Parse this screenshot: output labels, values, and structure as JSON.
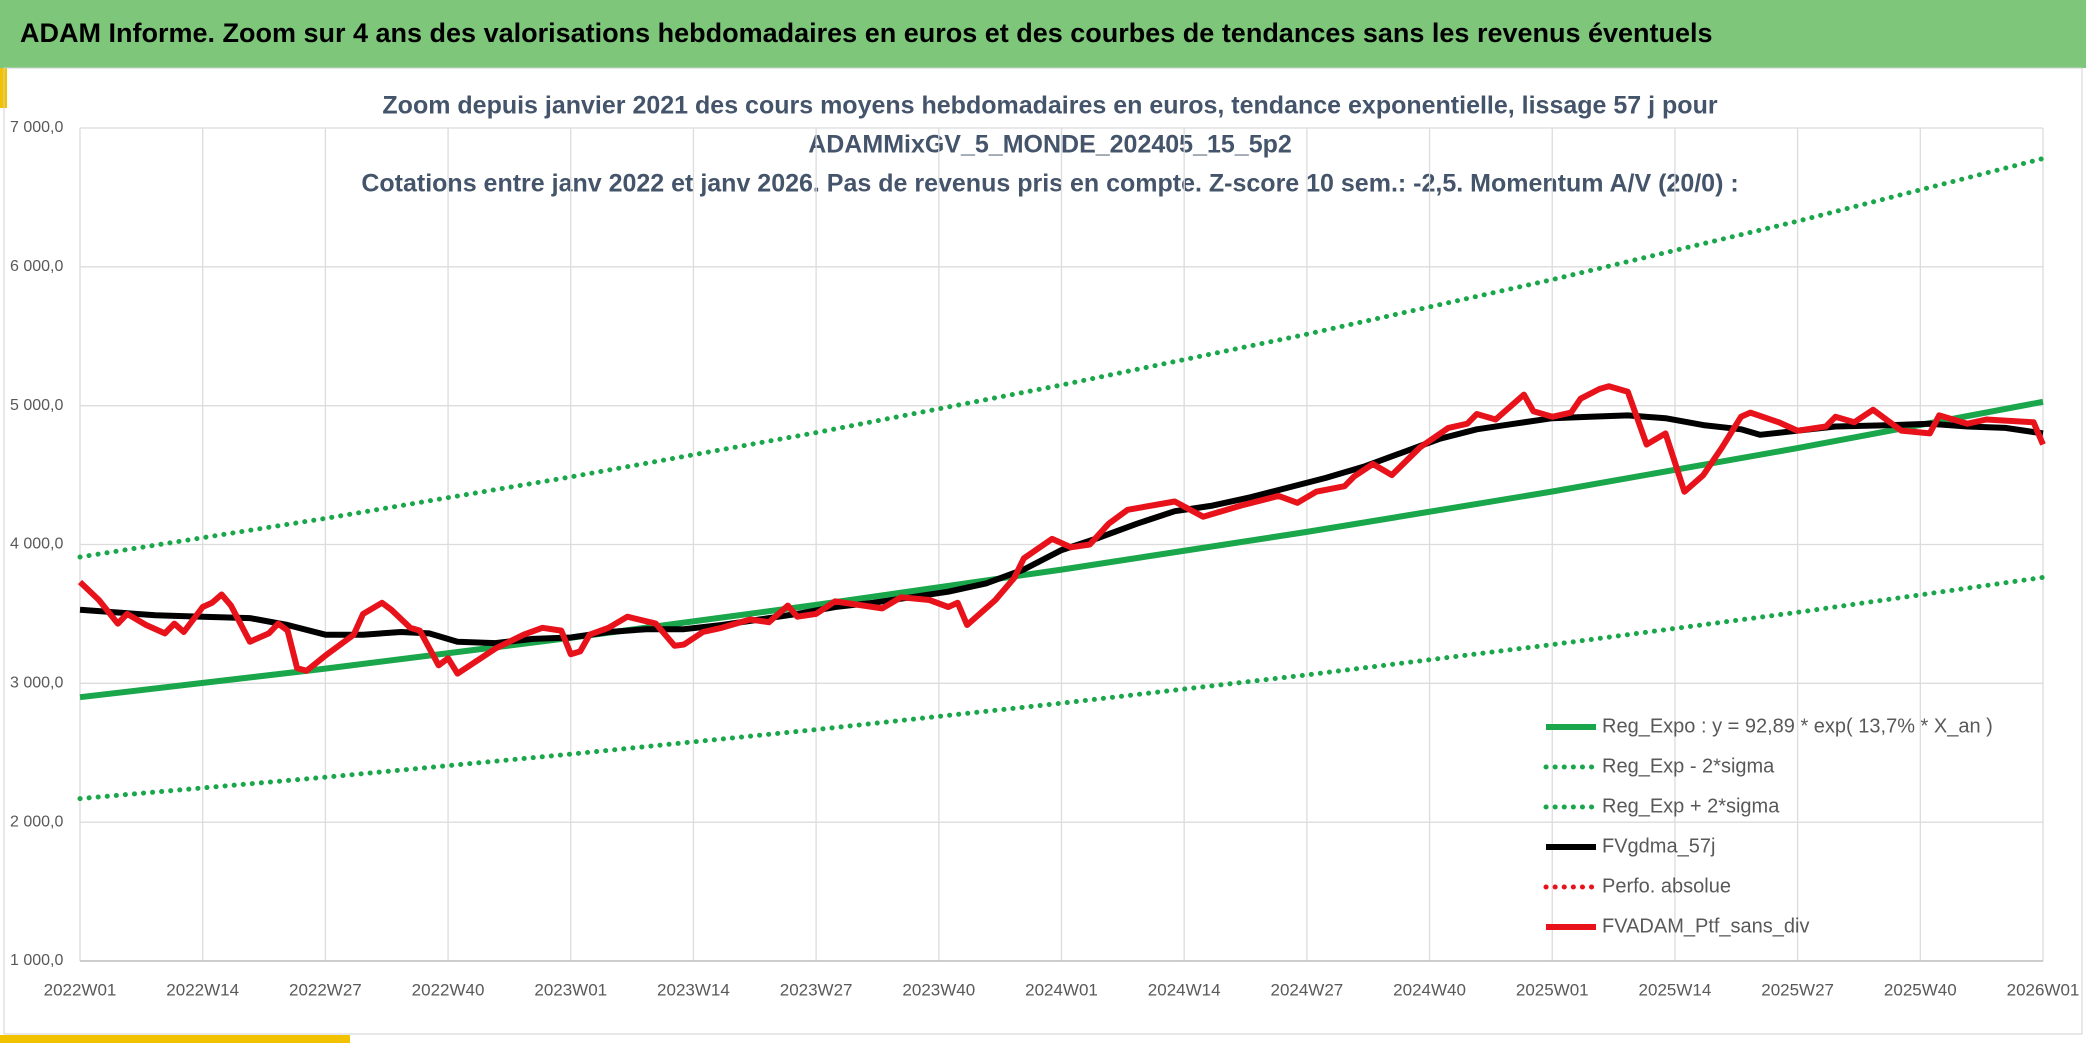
{
  "header": "ADAM Informe. Zoom sur 4 ans des valorisations hebdomadaires en euros et des courbes de tendances sans les revenus éventuels",
  "chart_data": {
    "type": "line",
    "title": [
      "Zoom depuis janvier 2021 des cours moyens hebdomadaires en euros, tendance exponentielle, lissage 57 j pour",
      "ADAMMixGV_5_MONDE_202405_15_5p2",
      "Cotations entre janv 2022 et janv 2026. Pas de revenus pris en compte. Z-score 10 sem.: -2,5. Momentum A/V (20/0) :"
    ],
    "xlim": [
      0,
      208
    ],
    "xticks": [
      {
        "value": 0,
        "label": "2022W01"
      },
      {
        "value": 13,
        "label": "2022W14"
      },
      {
        "value": 26,
        "label": "2022W27"
      },
      {
        "value": 39,
        "label": "2022W40"
      },
      {
        "value": 52,
        "label": "2023W01"
      },
      {
        "value": 65,
        "label": "2023W14"
      },
      {
        "value": 78,
        "label": "2023W27"
      },
      {
        "value": 91,
        "label": "2023W40"
      },
      {
        "value": 104,
        "label": "2024W01"
      },
      {
        "value": 117,
        "label": "2024W14"
      },
      {
        "value": 130,
        "label": "2024W27"
      },
      {
        "value": 143,
        "label": "2024W40"
      },
      {
        "value": 156,
        "label": "2025W01"
      },
      {
        "value": 169,
        "label": "2025W14"
      },
      {
        "value": 182,
        "label": "2025W27"
      },
      {
        "value": 195,
        "label": "2025W40"
      },
      {
        "value": 208,
        "label": "2026W01"
      }
    ],
    "ylim": [
      1000,
      7000
    ],
    "yticks": [
      {
        "value": 1000,
        "label": "1 000,0"
      },
      {
        "value": 2000,
        "label": "2 000,0"
      },
      {
        "value": 3000,
        "label": "3 000,0"
      },
      {
        "value": 4000,
        "label": "4 000,0"
      },
      {
        "value": 5000,
        "label": "5 000,0"
      },
      {
        "value": 6000,
        "label": "6 000,0"
      },
      {
        "value": 7000,
        "label": "7 000,0"
      }
    ],
    "grid": true,
    "series": [
      {
        "name": "Reg_Expo : y = 92,89 * exp( 13,7% *  X_an )",
        "color": "#1aa64a",
        "style": "solid",
        "x": [
          0,
          26,
          52,
          78,
          104,
          130,
          156,
          182,
          208
        ],
        "values": [
          2900,
          3106,
          3328,
          3565,
          3819,
          4091,
          4382,
          4694,
          5028
        ]
      },
      {
        "name": "Reg_Exp - 2*sigma",
        "color": "#1aa64a",
        "style": "dotted",
        "x": [
          0,
          26,
          52,
          78,
          104,
          130,
          156,
          182,
          208
        ],
        "values": [
          2170,
          2324,
          2490,
          2667,
          2857,
          3061,
          3279,
          3512,
          3763
        ]
      },
      {
        "name": "Reg_Exp + 2*sigma",
        "color": "#1aa64a",
        "style": "dotted",
        "x": [
          0,
          26,
          52,
          78,
          104,
          130,
          156,
          182,
          208
        ],
        "values": [
          3910,
          4188,
          4487,
          4806,
          5149,
          5515,
          5908,
          6329,
          6780
        ]
      },
      {
        "name": "FVgdma_57j",
        "color": "#000000",
        "style": "solid",
        "x": [
          0,
          8,
          13,
          18,
          22,
          26,
          30,
          34,
          37,
          40,
          44,
          48,
          52,
          56,
          60,
          64,
          68,
          72,
          76,
          80,
          84,
          88,
          92,
          96,
          100,
          104,
          108,
          112,
          116,
          120,
          124,
          128,
          132,
          136,
          140,
          144,
          148,
          152,
          156,
          160,
          164,
          168,
          172,
          176,
          178,
          182,
          186,
          192,
          196,
          200,
          204,
          208
        ],
        "values": [
          3530,
          3490,
          3480,
          3470,
          3420,
          3350,
          3350,
          3370,
          3360,
          3300,
          3290,
          3320,
          3330,
          3370,
          3390,
          3390,
          3420,
          3460,
          3500,
          3550,
          3580,
          3620,
          3660,
          3720,
          3820,
          3960,
          4050,
          4150,
          4240,
          4280,
          4340,
          4410,
          4480,
          4560,
          4660,
          4760,
          4830,
          4870,
          4910,
          4920,
          4930,
          4910,
          4860,
          4830,
          4790,
          4820,
          4850,
          4860,
          4870,
          4850,
          4840,
          4800
        ]
      },
      {
        "name": "Perfo. absolue",
        "color": "#e8121b",
        "style": "dotted",
        "x": [],
        "values": []
      },
      {
        "name": "FVADAM_Ptf_sans_div",
        "color": "#e8121b",
        "style": "solid",
        "x": [
          0,
          2,
          4,
          5,
          7,
          9,
          10,
          11,
          13,
          14,
          15,
          16,
          18,
          20,
          21,
          22,
          23,
          24,
          26,
          29,
          30,
          32,
          33,
          35,
          36,
          38,
          39,
          40,
          44,
          47,
          49,
          51,
          52,
          53,
          54,
          56,
          58,
          61,
          63,
          64,
          66,
          68,
          71,
          73,
          75,
          76,
          78,
          80,
          85,
          87,
          90,
          92,
          93,
          94,
          97,
          99,
          100,
          103,
          105,
          107,
          109,
          111,
          116,
          119,
          123,
          127,
          129,
          131,
          134,
          135,
          137,
          139,
          142,
          145,
          147,
          148,
          150,
          152,
          153,
          154,
          156,
          158,
          159,
          161,
          162,
          164,
          166,
          168,
          170,
          172,
          174,
          176,
          177,
          180,
          182,
          185,
          186,
          188,
          190,
          193,
          196,
          197,
          200,
          202,
          207,
          208
        ],
        "values": [
          3730,
          3600,
          3430,
          3500,
          3420,
          3360,
          3430,
          3370,
          3550,
          3580,
          3640,
          3560,
          3300,
          3360,
          3430,
          3380,
          3110,
          3090,
          3200,
          3350,
          3500,
          3580,
          3530,
          3400,
          3380,
          3130,
          3180,
          3070,
          3250,
          3350,
          3400,
          3380,
          3210,
          3230,
          3350,
          3400,
          3480,
          3430,
          3270,
          3280,
          3370,
          3400,
          3460,
          3440,
          3560,
          3480,
          3500,
          3590,
          3540,
          3620,
          3600,
          3550,
          3580,
          3420,
          3600,
          3760,
          3900,
          4040,
          3980,
          4000,
          4150,
          4250,
          4310,
          4200,
          4280,
          4350,
          4300,
          4380,
          4420,
          4490,
          4580,
          4500,
          4700,
          4840,
          4870,
          4940,
          4900,
          5020,
          5080,
          4960,
          4920,
          4950,
          5050,
          5120,
          5140,
          5100,
          4720,
          4800,
          4380,
          4500,
          4700,
          4920,
          4950,
          4880,
          4820,
          4850,
          4920,
          4880,
          4970,
          4820,
          4800,
          4930,
          4870,
          4900,
          4880,
          4720
        ]
      }
    ]
  }
}
